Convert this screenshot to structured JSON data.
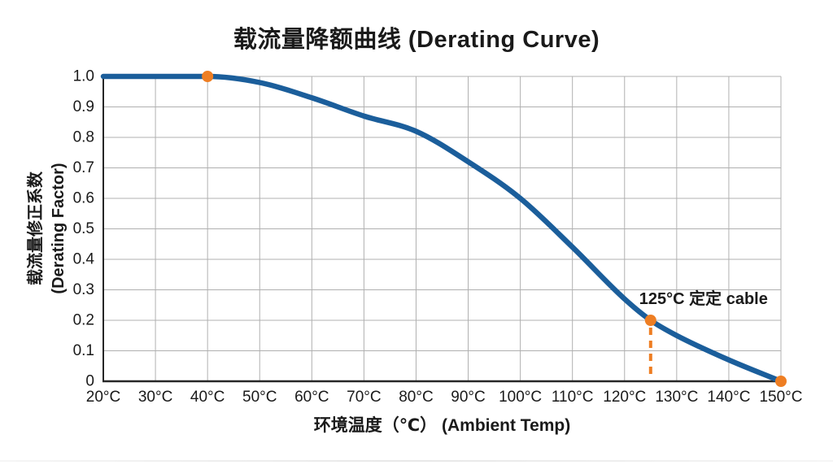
{
  "title": "载流量降额曲线 (Derating Curve)",
  "x_axis": {
    "label": "环境温度（℃） (Ambient Temp)",
    "tick_values": [
      20,
      30,
      40,
      50,
      60,
      70,
      80,
      90,
      100,
      110,
      120,
      130,
      140,
      150
    ],
    "tick_labels": [
      "20°C",
      "30°C",
      "40°C",
      "50°C",
      "60°C",
      "70°C",
      "80°C",
      "90°C",
      "100°C",
      "110°C",
      "120°C",
      "130°C",
      "140°C",
      "150°C"
    ]
  },
  "y_axis": {
    "label_line1": "载流量修正系数",
    "label_line2": "(Derating Factor)",
    "tick_values": [
      1.0,
      0.9,
      0.8,
      0.7,
      0.6,
      0.5,
      0.4,
      0.3,
      0.2,
      0.1,
      0
    ],
    "tick_labels": [
      "1.0",
      "0.9",
      "0.8",
      "0.7",
      "0.6",
      "0.5",
      "0.4",
      "0.3",
      "0.2",
      "0.1",
      "0"
    ]
  },
  "chart_data": {
    "type": "line",
    "title": "载流量降额曲线 (Derating Curve)",
    "xlabel": "环境温度（℃） (Ambient Temp)",
    "ylabel": "载流量修正系数 (Derating Factor)",
    "x": [
      20,
      30,
      40,
      50,
      60,
      70,
      80,
      90,
      100,
      110,
      120,
      125,
      130,
      140,
      150
    ],
    "y": [
      1.0,
      1.0,
      1.0,
      0.98,
      0.93,
      0.87,
      0.82,
      0.72,
      0.6,
      0.44,
      0.27,
      0.2,
      0.15,
      0.07,
      0
    ],
    "xlim": [
      20,
      150
    ],
    "ylim": [
      0,
      1.0
    ],
    "grid": true,
    "legend": "none",
    "markers": [
      {
        "x": 40,
        "y": 1.0
      },
      {
        "x": 125,
        "y": 0.2
      },
      {
        "x": 150,
        "y": 0
      }
    ],
    "annotation": {
      "text": "125°C 定定 cable",
      "x": 125,
      "y": 0.2,
      "dashed_drop_line": true
    },
    "colors": {
      "line": "#1b5e9b",
      "marker": "#ee7e23",
      "grid": "#b0b0b0",
      "axis": "#262626",
      "text": "#1a1a1a",
      "background": "#ffffff"
    }
  }
}
